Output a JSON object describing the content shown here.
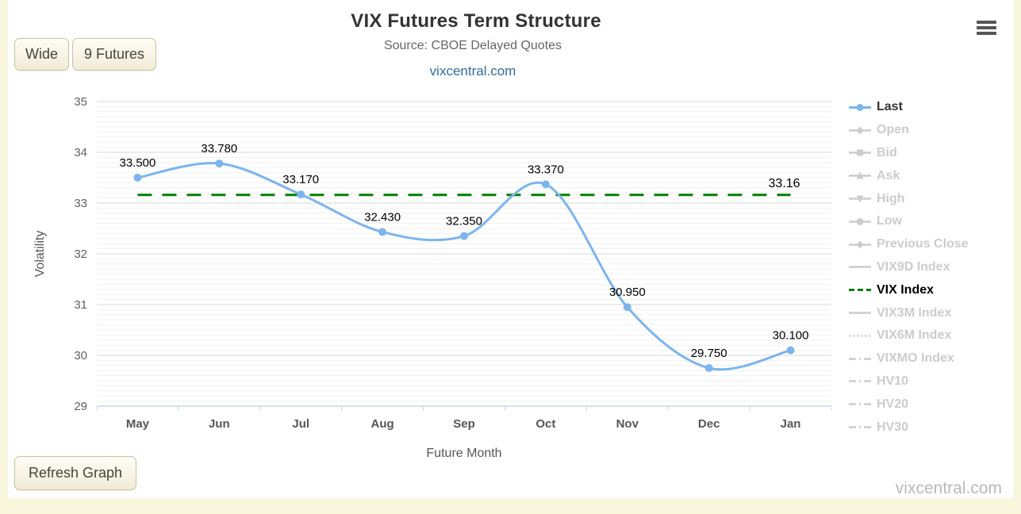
{
  "links": {
    "vixcentral": "vixcentral.com"
  },
  "watermark": "vixcentral.com",
  "toolbar": {
    "wide_label": "Wide",
    "futures_label": "9 Futures",
    "refresh_label": "Refresh Graph"
  },
  "icons": {
    "menu": "hamburger-menu"
  },
  "colors": {
    "page_margin": "#f8f7de",
    "panel": "#ffffff",
    "series_line": "#7cb5ec",
    "reference_green": "#008000",
    "inactive_gray": "#cccccc",
    "grid_major": "#d9d9d9",
    "grid_minor": "#f1f1f1",
    "axis_line": "#ccd6eb",
    "tick_label": "#606060"
  },
  "chart_data": {
    "type": "line",
    "title": "VIX Futures Term Structure",
    "subtitle": "Source: CBOE Delayed Quotes",
    "categories": [
      "May",
      "Jun",
      "Jul",
      "Aug",
      "Sep",
      "Oct",
      "Nov",
      "Dec",
      "Jan"
    ],
    "series": [
      {
        "name": "Last",
        "color": "#7cb5ec",
        "values": [
          33.5,
          33.78,
          33.17,
          32.43,
          32.35,
          33.37,
          30.95,
          29.75,
          30.1
        ],
        "point_labels": [
          "33.500",
          "33.780",
          "33.170",
          "32.430",
          "32.350",
          "33.370",
          "30.950",
          "29.750",
          "30.100"
        ]
      }
    ],
    "reference_line": {
      "name": "VIX Index",
      "value": 33.16,
      "label": "33.16",
      "color": "#008000",
      "style": "dashed"
    },
    "xlabel": "Future Month",
    "ylabel": "Volatility",
    "ylim": [
      29,
      35
    ],
    "y_ticks": [
      29,
      30,
      31,
      32,
      33,
      34,
      35
    ],
    "minor_tick_step": 0.1,
    "grid": true,
    "legend_position": "right"
  },
  "legend": {
    "items": [
      {
        "label": "Last",
        "color": "#7cb5ec",
        "text_color": "#333333",
        "symbol": "circle",
        "line": "solid",
        "active": true
      },
      {
        "label": "Open",
        "color": "#cccccc",
        "text_color": "#cccccc",
        "symbol": "diamond",
        "line": "solid",
        "active": false
      },
      {
        "label": "Bid",
        "color": "#cccccc",
        "text_color": "#cccccc",
        "symbol": "square",
        "line": "solid",
        "active": false
      },
      {
        "label": "Ask",
        "color": "#cccccc",
        "text_color": "#cccccc",
        "symbol": "triangle",
        "line": "solid",
        "active": false
      },
      {
        "label": "High",
        "color": "#cccccc",
        "text_color": "#cccccc",
        "symbol": "triangle-down",
        "line": "solid",
        "active": false
      },
      {
        "label": "Low",
        "color": "#cccccc",
        "text_color": "#cccccc",
        "symbol": "circle",
        "line": "solid",
        "active": false
      },
      {
        "label": "Previous Close",
        "color": "#cccccc",
        "text_color": "#cccccc",
        "symbol": "diamond",
        "line": "solid",
        "active": false
      },
      {
        "label": "VIX9D Index",
        "color": "#cccccc",
        "text_color": "#cccccc",
        "symbol": "none",
        "line": "solid",
        "active": false
      },
      {
        "label": "VIX Index",
        "color": "#008000",
        "text_color": "#000000",
        "symbol": "none",
        "line": "dash",
        "active": true
      },
      {
        "label": "VIX3M Index",
        "color": "#cccccc",
        "text_color": "#cccccc",
        "symbol": "none",
        "line": "solid",
        "active": false
      },
      {
        "label": "VIX6M Index",
        "color": "#cccccc",
        "text_color": "#cccccc",
        "symbol": "none",
        "line": "dot",
        "active": false
      },
      {
        "label": "VIXMO Index",
        "color": "#cccccc",
        "text_color": "#cccccc",
        "symbol": "none",
        "line": "dash-dot",
        "active": false
      },
      {
        "label": "HV10",
        "color": "#cccccc",
        "text_color": "#cccccc",
        "symbol": "none",
        "line": "dash-dot",
        "active": false
      },
      {
        "label": "HV20",
        "color": "#cccccc",
        "text_color": "#cccccc",
        "symbol": "none",
        "line": "dash-dot",
        "active": false
      },
      {
        "label": "HV30",
        "color": "#cccccc",
        "text_color": "#cccccc",
        "symbol": "none",
        "line": "dash-dot",
        "active": false
      }
    ]
  }
}
